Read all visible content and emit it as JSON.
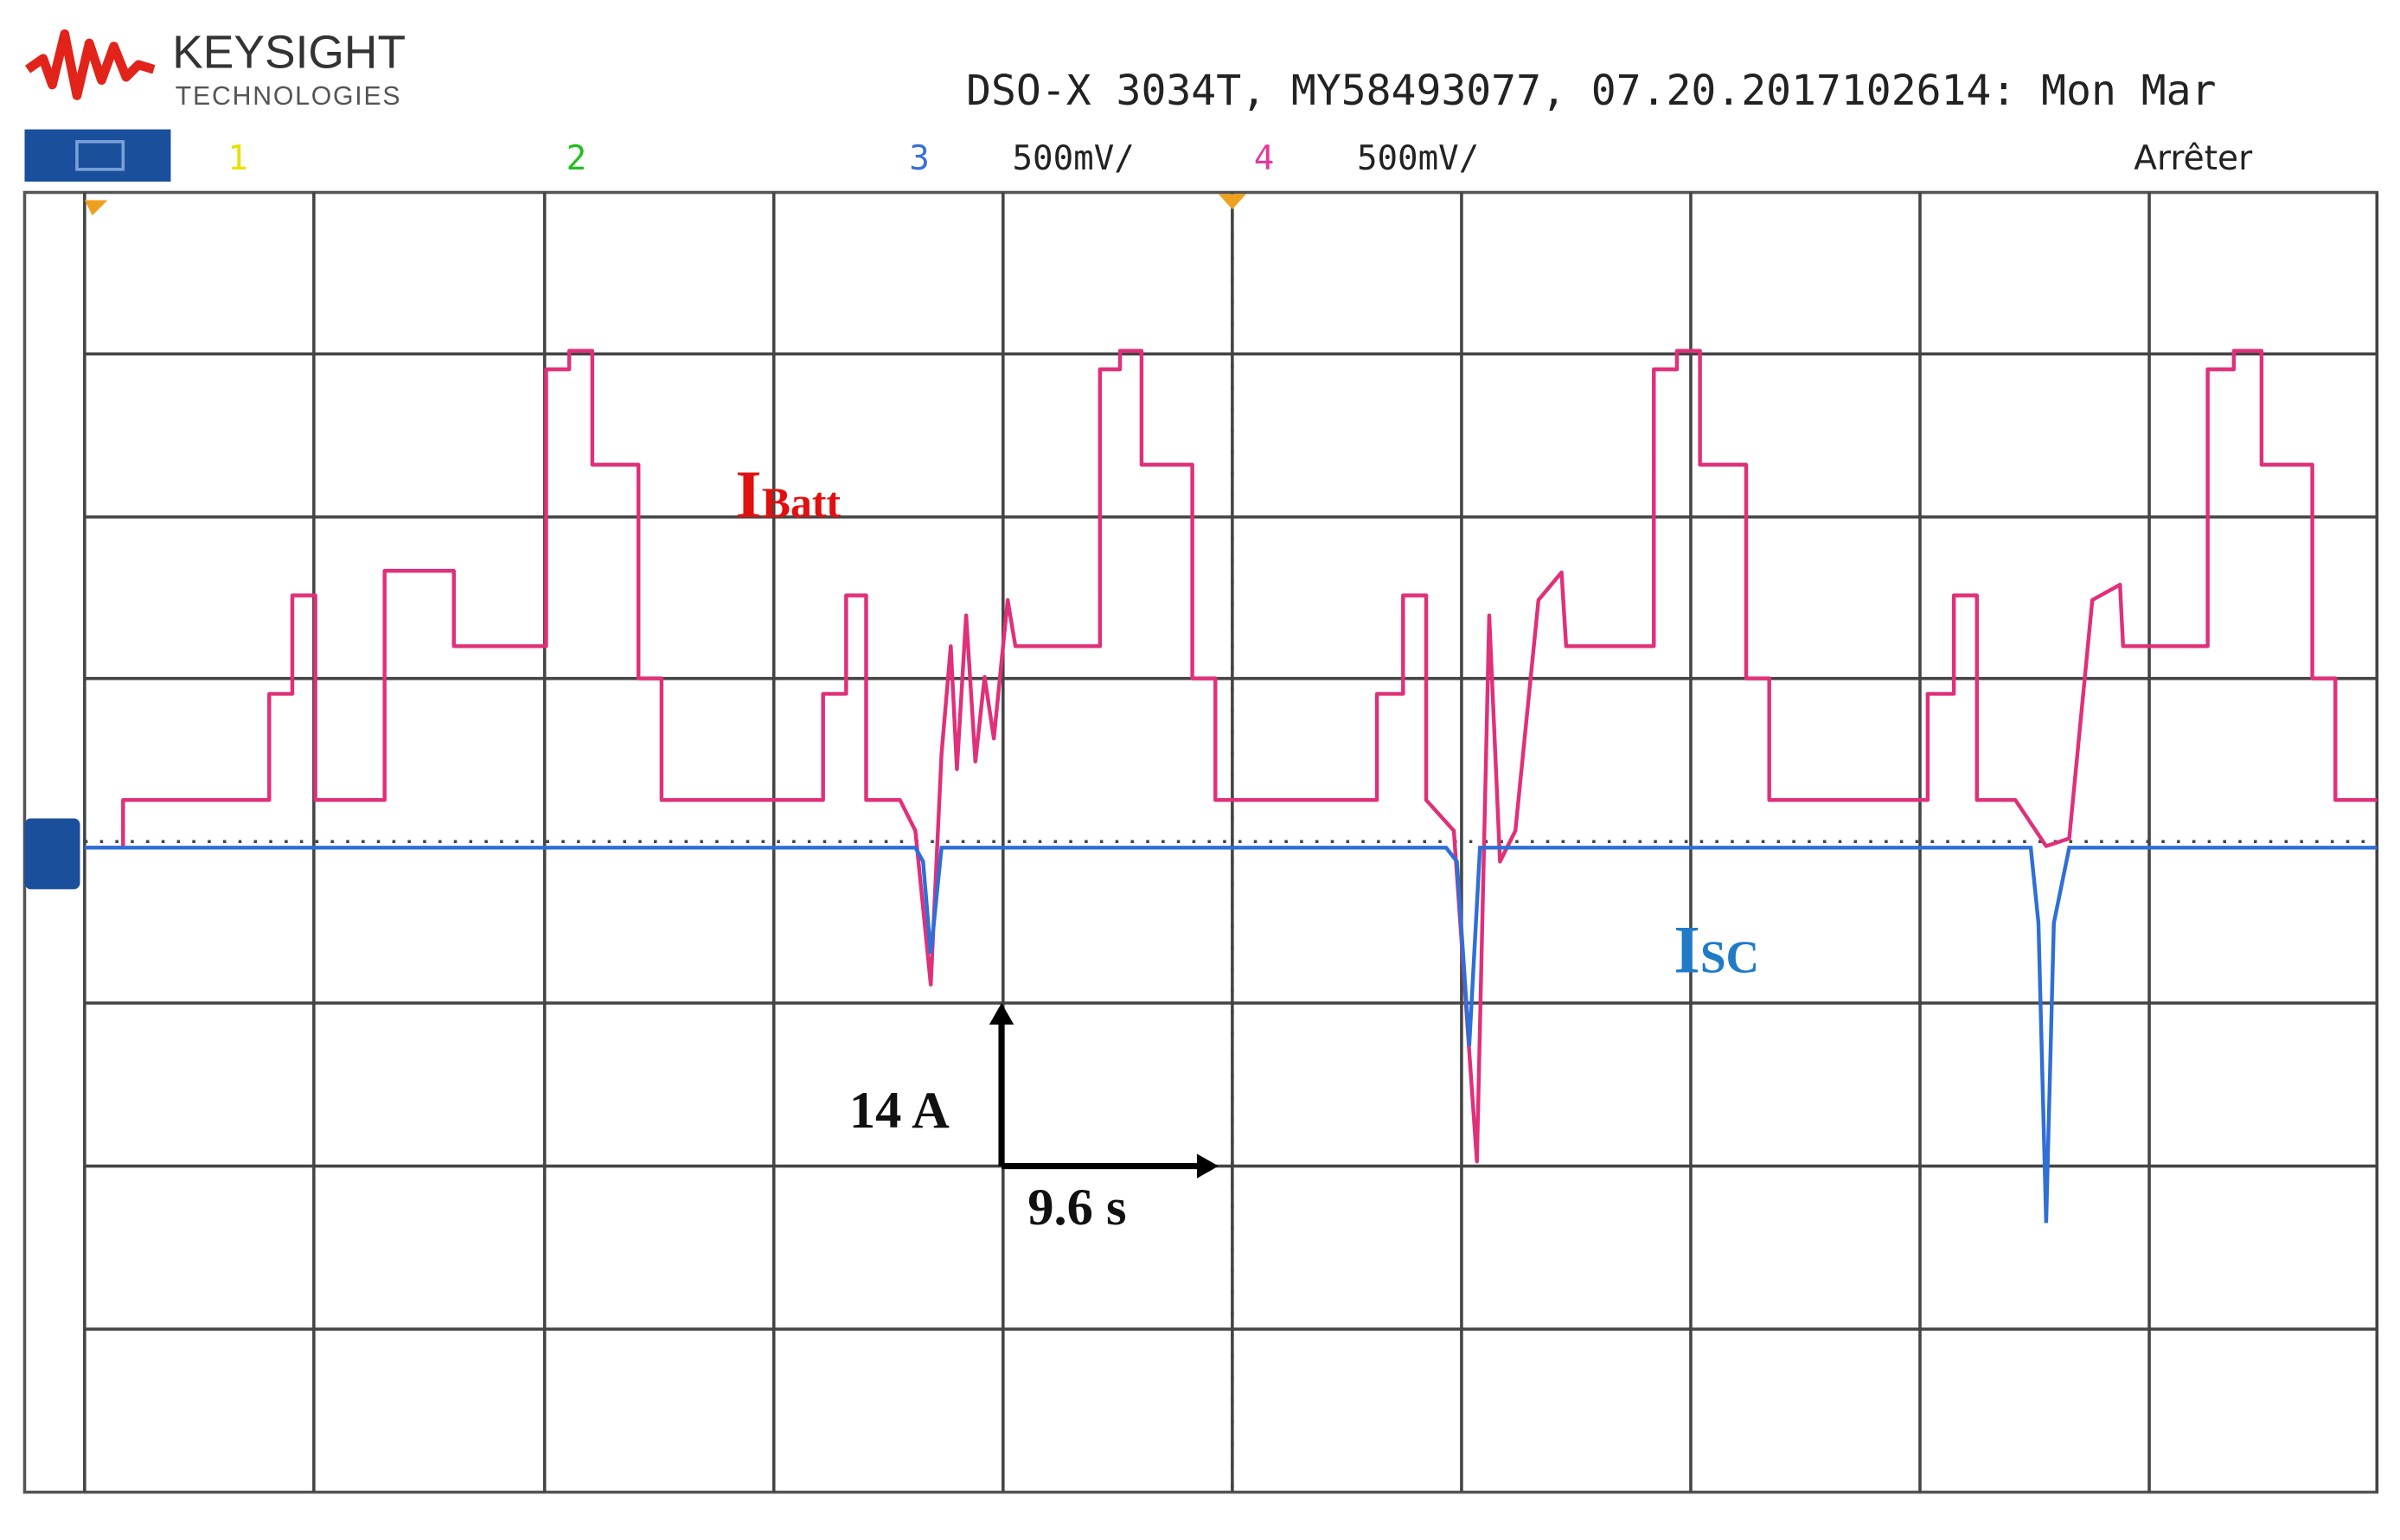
{
  "header": {
    "brand": "KEYSIGHT",
    "brand_sub": "TECHNOLOGIES",
    "instrument": "DSO-X 3034T, MY58493077, 07.20.2017102614: Mon Mar"
  },
  "channels": [
    {
      "number": "1"
    },
    {
      "number": "2"
    },
    {
      "number": "3",
      "scale": "500mV/"
    },
    {
      "number": "4",
      "scale": "500mV/"
    }
  ],
  "status": "Arrêter",
  "annotations": {
    "batt": {
      "main": "I",
      "sub": "Batt"
    },
    "sc": {
      "main": "I",
      "sub": "SC"
    },
    "vertical_scale": "14 A",
    "horizontal_scale": "9.6 s"
  }
}
